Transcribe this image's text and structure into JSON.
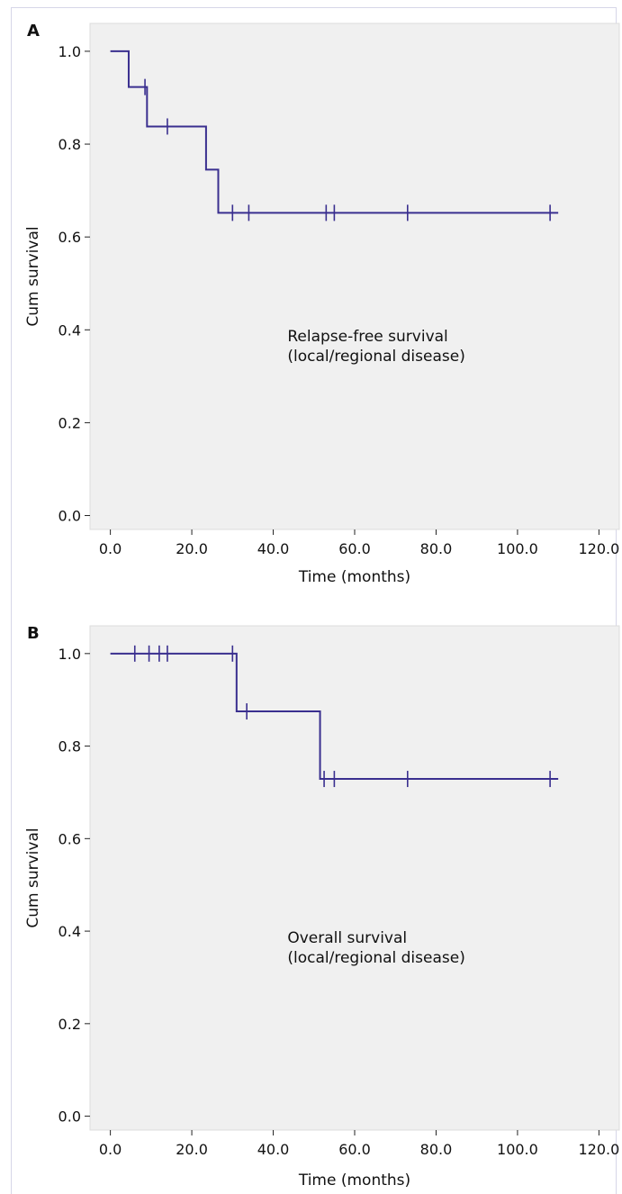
{
  "colors": {
    "plot_background": "#f0f0f0",
    "frame": "#d6d6e8",
    "line": "#3a2f8f",
    "axis": "#222222"
  },
  "chart_data": [
    {
      "type": "line",
      "subtype": "kaplan-meier step",
      "panel_label": "A",
      "xlabel": "Time (months)",
      "ylabel": "Cum survival",
      "xlim": [
        -5,
        125
      ],
      "ylim": [
        -0.03,
        1.06
      ],
      "x_ticks": [
        0,
        20,
        40,
        60,
        80,
        100,
        120
      ],
      "x_tick_labels": [
        "0.0",
        "20.0",
        "40.0",
        "60.0",
        "80.0",
        "100.0",
        "120.0"
      ],
      "y_ticks": [
        0,
        0.2,
        0.4,
        0.6,
        0.8,
        1.0
      ],
      "y_tick_labels": [
        "0.0",
        "0.2",
        "0.4",
        "0.6",
        "0.8",
        "1.0"
      ],
      "annotation": [
        "Relapse-free survival",
        "(local/regional disease)"
      ],
      "legend": "none",
      "grid": false,
      "series": [
        {
          "steps": [
            [
              0,
              1.0
            ],
            [
              4.5,
              0.923
            ],
            [
              9,
              0.838
            ],
            [
              23.5,
              0.745
            ],
            [
              26.5,
              0.652
            ]
          ],
          "end_x": 110,
          "censored": [
            [
              8.5,
              0.923
            ],
            [
              14,
              0.838
            ],
            [
              30,
              0.652
            ],
            [
              34,
              0.652
            ],
            [
              53,
              0.652
            ],
            [
              55,
              0.652
            ],
            [
              73,
              0.652
            ],
            [
              108,
              0.652
            ]
          ]
        }
      ]
    },
    {
      "type": "line",
      "subtype": "kaplan-meier step",
      "panel_label": "B",
      "xlabel": "Time (months)",
      "ylabel": "Cum survival",
      "xlim": [
        -5,
        125
      ],
      "ylim": [
        -0.03,
        1.06
      ],
      "x_ticks": [
        0,
        20,
        40,
        60,
        80,
        100,
        120
      ],
      "x_tick_labels": [
        "0.0",
        "20.0",
        "40.0",
        "60.0",
        "80.0",
        "100.0",
        "120.0"
      ],
      "y_ticks": [
        0,
        0.2,
        0.4,
        0.6,
        0.8,
        1.0
      ],
      "y_tick_labels": [
        "0.0",
        "0.2",
        "0.4",
        "0.6",
        "0.8",
        "1.0"
      ],
      "annotation": [
        "Overall survival",
        "(local/regional disease)"
      ],
      "legend": "none",
      "grid": false,
      "series": [
        {
          "steps": [
            [
              0,
              1.0
            ],
            [
              31,
              0.875
            ],
            [
              51.5,
              0.729
            ]
          ],
          "end_x": 110,
          "censored": [
            [
              6,
              1.0
            ],
            [
              9.5,
              1.0
            ],
            [
              12,
              1.0
            ],
            [
              14,
              1.0
            ],
            [
              30,
              1.0
            ],
            [
              33.5,
              0.875
            ],
            [
              52.5,
              0.729
            ],
            [
              55,
              0.729
            ],
            [
              73,
              0.729
            ],
            [
              108,
              0.729
            ]
          ]
        }
      ]
    }
  ]
}
